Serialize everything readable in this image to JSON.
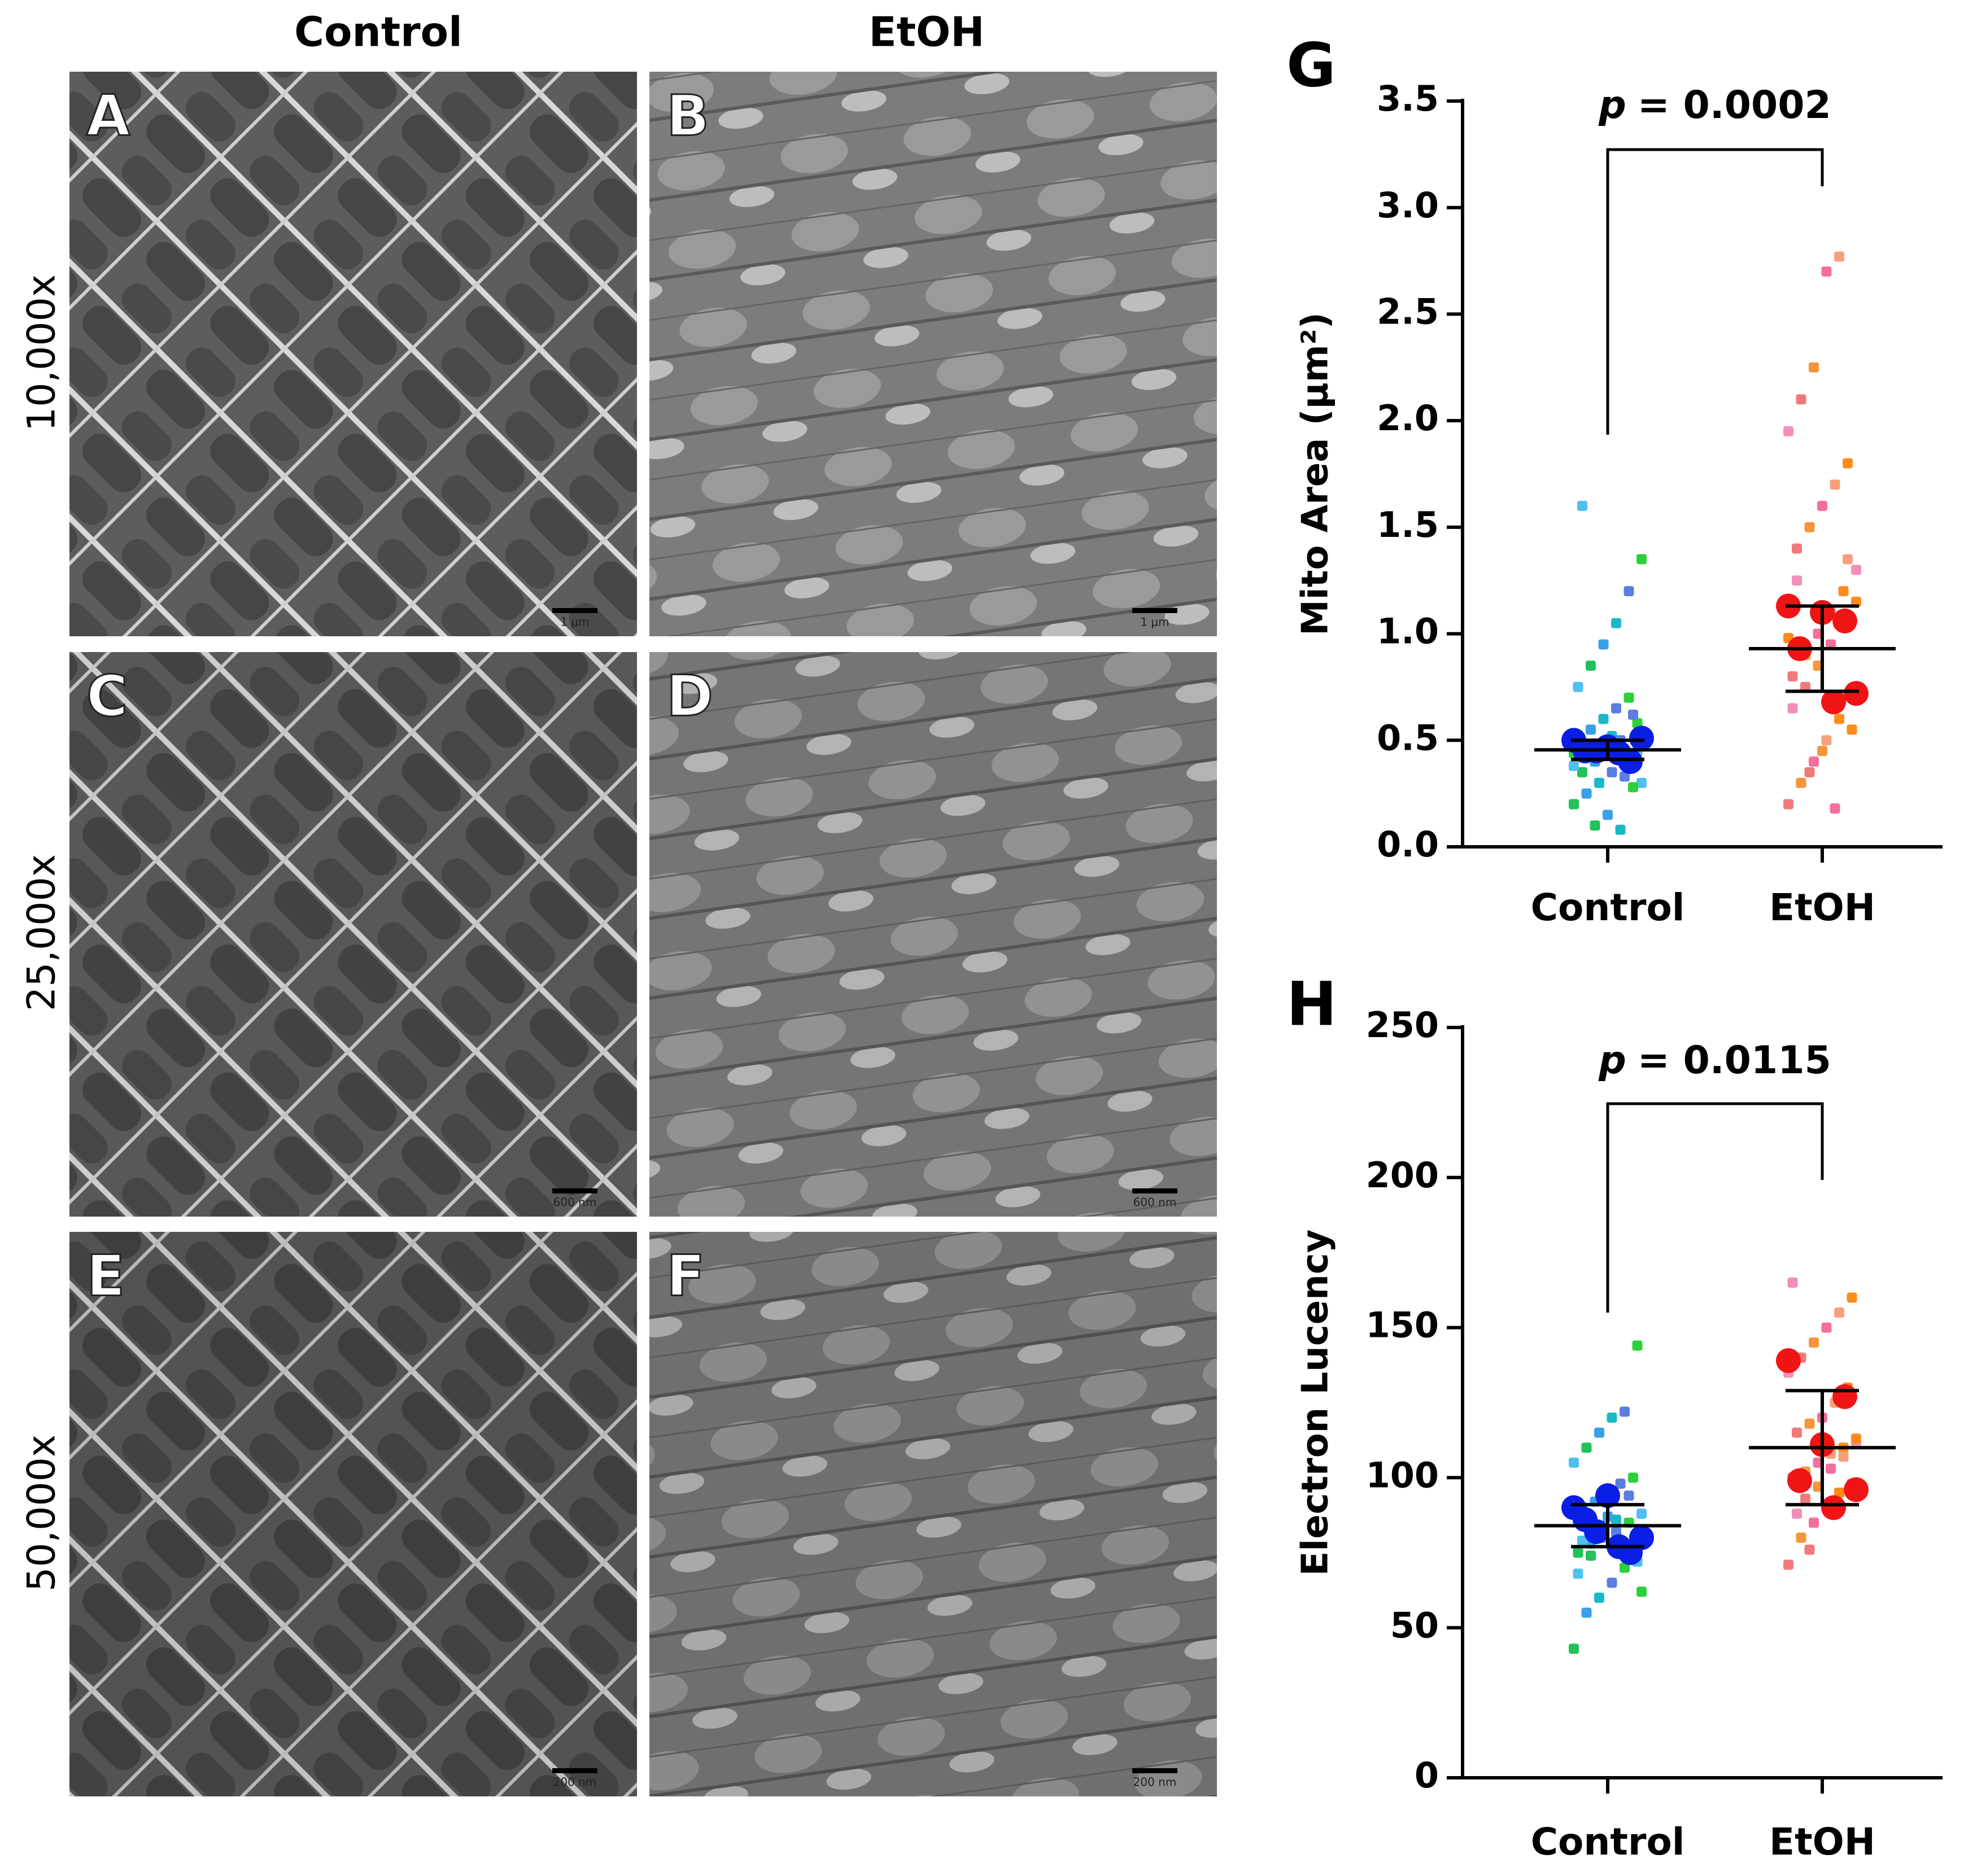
{
  "figure": {
    "columns": [
      "Control",
      "EtOH"
    ],
    "rows": [
      "10,000x",
      "25,000x",
      "50,000x"
    ],
    "panels": [
      {
        "label": "A",
        "scale_bar": "1 μm"
      },
      {
        "label": "B",
        "scale_bar": "1 μm"
      },
      {
        "label": "C",
        "scale_bar": "600 nm"
      },
      {
        "label": "D",
        "scale_bar": "600 nm"
      },
      {
        "label": "E",
        "scale_bar": "200 nm"
      },
      {
        "label": "F",
        "scale_bar": "200 nm"
      }
    ]
  },
  "chart_data": [
    {
      "type": "dot",
      "panel_label": "G",
      "y_label": "Mito Area (μm²)",
      "categories": [
        "Control",
        "EtOH"
      ],
      "ylim": [
        0,
        3.5
      ],
      "yticks": [
        {
          "value": 0,
          "label": "0.0"
        },
        0.5,
        {
          "value": 1,
          "label": "1.0"
        },
        1.5,
        {
          "value": 2,
          "label": "2.0"
        },
        2.5,
        {
          "value": 3,
          "label": "3.0"
        },
        3.5
      ],
      "annotation": {
        "symbol": "p",
        "text": "= 0.0002"
      },
      "points": [
        [
          0.2,
          0.25,
          0.3,
          0.35,
          0.4,
          0.45,
          0.5,
          0.55,
          0.6,
          0.65,
          0.7,
          0.3,
          0.35,
          0.4,
          0.45,
          0.5,
          0.28,
          0.38,
          0.42,
          0.48,
          0.52,
          0.33,
          0.58,
          0.75,
          0.85,
          0.95,
          1.05,
          1.2,
          1.35,
          1.6,
          0.1,
          0.15,
          0.08,
          0.62,
          0.44
        ],
        [
          0.2,
          0.3,
          0.4,
          0.5,
          0.6,
          0.7,
          0.8,
          0.9,
          1.0,
          1.1,
          1.2,
          1.3,
          1.4,
          1.5,
          1.6,
          1.7,
          1.8,
          1.95,
          2.1,
          2.25,
          2.7,
          2.77,
          0.55,
          0.65,
          0.75,
          0.85,
          0.95,
          1.05,
          1.15,
          1.25,
          0.35,
          0.45,
          0.18,
          1.35,
          0.98
        ]
      ],
      "point_palettes": [
        [
          "#22c25a",
          "#3aa0e8",
          "#1cb8c8",
          "#5b7de0",
          "#2cd13a",
          "#4fc0f0"
        ],
        [
          "#f07a7a",
          "#f5953a",
          "#f46f9b",
          "#f7a07a",
          "#ff8c1a",
          "#f28fb8"
        ]
      ],
      "replicates": [
        [
          0.5,
          0.4,
          0.47,
          0.45,
          0.51,
          0.44,
          0.45
        ],
        [
          1.13,
          1.06,
          1.1,
          0.93,
          0.72,
          0.68
        ]
      ],
      "replicate_colors": [
        "#0a1ee6",
        "#f01414"
      ],
      "means": [
        0.455,
        0.93
      ],
      "sd": [
        0.045,
        0.2
      ]
    },
    {
      "type": "dot",
      "panel_label": "H",
      "y_label": "Electron Lucency",
      "categories": [
        "Control",
        "EtOH"
      ],
      "ylim": [
        0,
        250
      ],
      "yticks": [
        0,
        50,
        100,
        150,
        200,
        250
      ],
      "annotation": {
        "symbol": "p",
        "text": "= 0.0115"
      },
      "points": [
        [
          43,
          55,
          60,
          65,
          70,
          72,
          75,
          78,
          80,
          82,
          85,
          88,
          90,
          92,
          95,
          98,
          100,
          105,
          110,
          115,
          120,
          122,
          144,
          68,
          74,
          84,
          86,
          94,
          62,
          79,
          83,
          87
        ],
        [
          71,
          80,
          85,
          90,
          95,
          98,
          100,
          102,
          105,
          108,
          110,
          112,
          115,
          118,
          120,
          125,
          130,
          135,
          140,
          145,
          150,
          155,
          160,
          165,
          93,
          97,
          103,
          107,
          113,
          88,
          76
        ]
      ],
      "point_palettes": [
        [
          "#22c25a",
          "#3aa0e8",
          "#1cb8c8",
          "#5b7de0",
          "#2cd13a",
          "#4fc0f0"
        ],
        [
          "#f07a7a",
          "#f5953a",
          "#f46f9b",
          "#f7a07a",
          "#ff8c1a",
          "#f28fb8"
        ]
      ],
      "replicates": [
        [
          90,
          75,
          94,
          86,
          80,
          77,
          82
        ],
        [
          139,
          127,
          111,
          99,
          96,
          90
        ]
      ],
      "replicate_colors": [
        "#0a1ee6",
        "#f01414"
      ],
      "means": [
        84,
        110
      ],
      "sd": [
        7,
        19
      ]
    }
  ]
}
